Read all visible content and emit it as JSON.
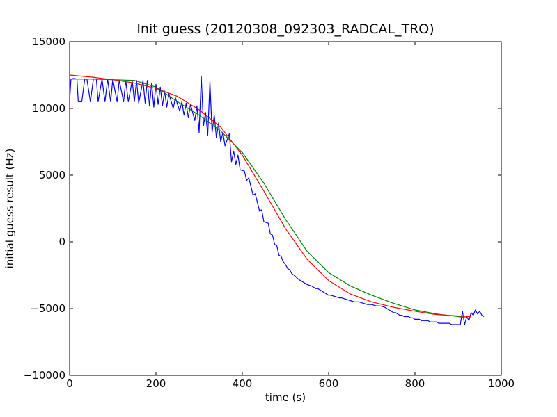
{
  "chart_data": {
    "type": "line",
    "title": "Init guess (20120308_092303_RADCAL_TRO)",
    "xlabel": "time (s)",
    "ylabel": "initial guess result (Hz)",
    "xlim": [
      0,
      1000
    ],
    "ylim": [
      -10000,
      15000
    ],
    "xticks": [
      0,
      200,
      400,
      600,
      800,
      1000
    ],
    "yticks": [
      -10000,
      -5000,
      0,
      5000,
      10000,
      15000
    ],
    "xtick_labels": [
      "0",
      "200",
      "400",
      "600",
      "800",
      "1000"
    ],
    "ytick_labels": [
      "−10000",
      "−5000",
      "0",
      "5000",
      "10000",
      "15000"
    ],
    "grid": false,
    "legend": "none",
    "series": [
      {
        "color": "#0000ff",
        "x": [
          0,
          3,
          10,
          17,
          20,
          28,
          35,
          40,
          48,
          55,
          62,
          66,
          75,
          82,
          88,
          95,
          100,
          110,
          115,
          125,
          130,
          136,
          145,
          150,
          155,
          160,
          170,
          175,
          180,
          185,
          190,
          195,
          200,
          205,
          210,
          215,
          220,
          225,
          230,
          240,
          245,
          255,
          260,
          265,
          270,
          275,
          280,
          290,
          295,
          300,
          305,
          310,
          315,
          320,
          325,
          330,
          335,
          340,
          345,
          350,
          355,
          360,
          370,
          375,
          380,
          385,
          390,
          395,
          405,
          410,
          415,
          425,
          430,
          440,
          445,
          450,
          460,
          465,
          470,
          475,
          480,
          485,
          490,
          495,
          500,
          505,
          510,
          515,
          520,
          530,
          535,
          540,
          545,
          550,
          560,
          565,
          570,
          575,
          585,
          590,
          595,
          600,
          605,
          615,
          625,
          630,
          640,
          650,
          660,
          670,
          680,
          690,
          700,
          710,
          720,
          730,
          735,
          740,
          745,
          750,
          755,
          760,
          765,
          770,
          775,
          780,
          785,
          790,
          795,
          800,
          805,
          810,
          815,
          820,
          825,
          830,
          835,
          840,
          845,
          850,
          855,
          860,
          865,
          870,
          875,
          880,
          885,
          890,
          895,
          900,
          905,
          910,
          915,
          920,
          925,
          930,
          935,
          940,
          945,
          950,
          955,
          960
        ],
        "y": [
          10600,
          12200,
          12250,
          12200,
          10500,
          10500,
          12200,
          12200,
          10500,
          12200,
          12200,
          10500,
          12200,
          10500,
          12200,
          10500,
          12200,
          10500,
          12100,
          10500,
          12100,
          10500,
          12100,
          10500,
          12100,
          10400,
          12100,
          10400,
          12100,
          10200,
          11900,
          10100,
          11800,
          10300,
          11600,
          10200,
          11300,
          10100,
          11100,
          10000,
          10800,
          9800,
          10500,
          9500,
          10400,
          9300,
          10300,
          9100,
          10200,
          8200,
          12400,
          8700,
          9700,
          8000,
          12000,
          8200,
          9500,
          7800,
          8900,
          7500,
          8200,
          7200,
          8100,
          6000,
          6800,
          5800,
          6500,
          5400,
          5300,
          4600,
          4800,
          3500,
          3600,
          2300,
          2400,
          1500,
          1400,
          600,
          500,
          -200,
          -300,
          -1000,
          -1100,
          -1500,
          -1700,
          -2000,
          -2100,
          -2400,
          -2500,
          -2800,
          -2900,
          -3000,
          -3100,
          -3200,
          -3300,
          -3400,
          -3500,
          -3500,
          -3700,
          -3800,
          -3900,
          -4000,
          -4000,
          -4100,
          -4200,
          -4200,
          -4300,
          -4400,
          -4500,
          -4500,
          -4600,
          -4700,
          -4700,
          -4800,
          -4800,
          -4900,
          -5000,
          -5100,
          -5200,
          -5300,
          -5300,
          -5400,
          -5500,
          -5500,
          -5600,
          -5600,
          -5600,
          -5700,
          -5700,
          -5800,
          -5800,
          -5800,
          -5900,
          -5900,
          -5900,
          -5900,
          -6000,
          -6000,
          -6000,
          -6000,
          -6100,
          -6100,
          -6100,
          -6100,
          -6100,
          -6100,
          -6200,
          -6200,
          -6200,
          -6200,
          -6200,
          -5200,
          -6200,
          -5600,
          -5900,
          -5300,
          -5500,
          -5100,
          -5400,
          -5200,
          -5500,
          -5600
        ]
      },
      {
        "color": "#008000",
        "x": [
          0,
          50,
          100,
          150,
          200,
          250,
          300,
          350,
          400,
          450,
          500,
          550,
          600,
          650,
          700,
          750,
          800,
          850,
          900,
          920
        ],
        "y": [
          12200,
          12200,
          12150,
          12100,
          11600,
          10500,
          9500,
          8300,
          6700,
          4400,
          1700,
          -700,
          -2300,
          -3300,
          -4000,
          -4600,
          -5100,
          -5400,
          -5600,
          -5700
        ]
      },
      {
        "color": "#ff0000",
        "x": [
          0,
          50,
          100,
          150,
          200,
          250,
          300,
          350,
          400,
          450,
          500,
          550,
          600,
          650,
          700,
          750,
          800,
          850,
          900,
          930
        ],
        "y": [
          12500,
          12350,
          12150,
          11900,
          11500,
          10900,
          9900,
          8600,
          6500,
          3800,
          1000,
          -1300,
          -2900,
          -3900,
          -4500,
          -4900,
          -5200,
          -5450,
          -5550,
          -5600
        ]
      }
    ]
  }
}
